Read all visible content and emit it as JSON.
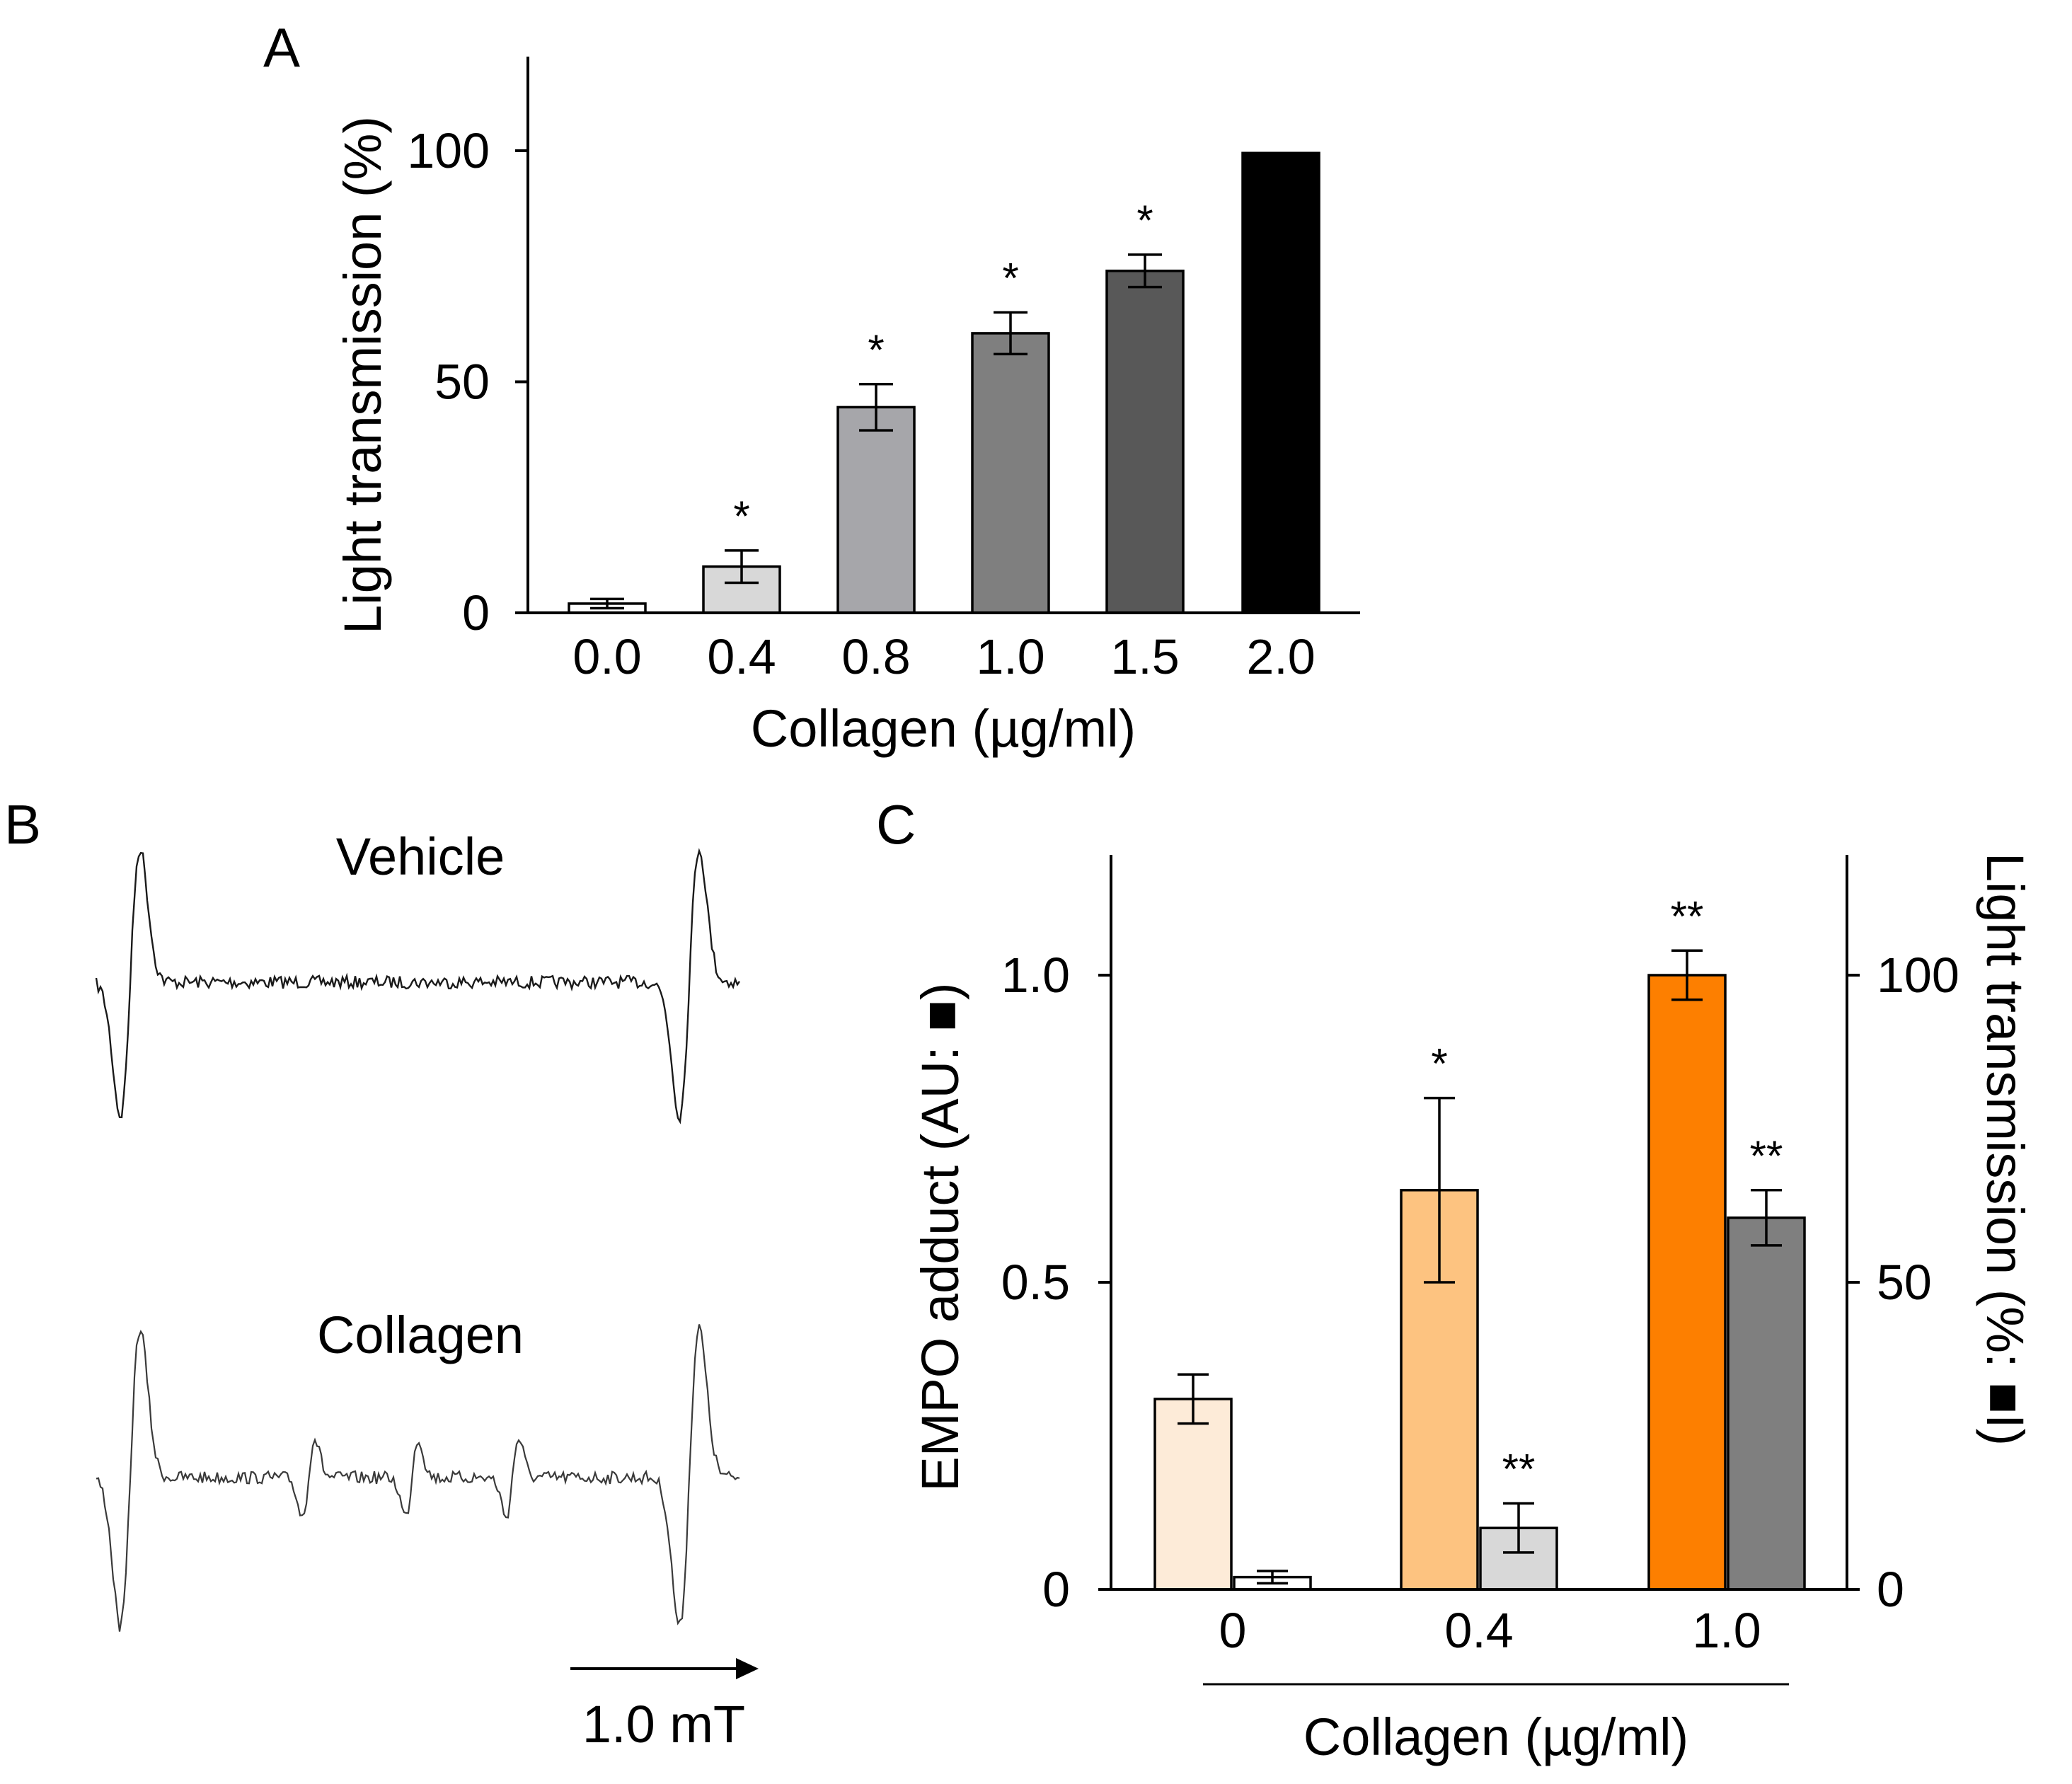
{
  "chart_data": [
    {
      "panel": "A",
      "type": "bar",
      "panel_label": "A",
      "xlabel": "Collagen (µg/ml)",
      "ylabel": "Light transmission (%)",
      "ylim": [
        0,
        120
      ],
      "yticks": [
        "0",
        "50",
        "100"
      ],
      "ytick_values": [
        0,
        50,
        100
      ],
      "categories": [
        "0.0",
        "0.4",
        "0.8",
        "1.0",
        "1.5",
        "2.0"
      ],
      "values": [
        2,
        10,
        44.5,
        60.5,
        74,
        99.5
      ],
      "errors": [
        1,
        3.5,
        5,
        4.5,
        3.5,
        0
      ],
      "colors": [
        "#ffffff",
        "#d8d8d8",
        "#a6a6aa",
        "#7f7f7f",
        "#585858",
        "#000000"
      ],
      "significance": [
        "",
        "*",
        "*",
        "*",
        "*",
        ""
      ]
    },
    {
      "panel": "B",
      "type": "spectrum",
      "panel_label": "B",
      "traces": [
        {
          "name": "Vehicle",
          "label": "Vehicle",
          "extra_peaks": 0
        },
        {
          "name": "Collagen",
          "label": "Collagen",
          "extra_peaks": 3
        }
      ],
      "scale_label": "1.0 mT"
    },
    {
      "panel": "C",
      "type": "bar",
      "panel_label": "C",
      "xlabel": "Collagen (µg/ml)",
      "ylabel_left": "EMPO adduct (AU: ■)",
      "ylabel_right": "Light transmission (%: ■I)",
      "ylim_left": [
        0,
        1.2
      ],
      "ylim_right": [
        0,
        120
      ],
      "yticks_left": [
        "0",
        "0.5",
        "1.0"
      ],
      "ytick_values_left": [
        0,
        0.5,
        1.0
      ],
      "yticks_right": [
        "0",
        "50",
        "100"
      ],
      "ytick_values_right": [
        0,
        50,
        100
      ],
      "categories": [
        "0",
        "0.4",
        "1.0"
      ],
      "series": [
        {
          "name": "EMPO adduct (AU)",
          "axis": "left",
          "values": [
            0.31,
            0.65,
            1.0
          ],
          "errors": [
            0.04,
            0.15,
            0.04
          ],
          "colors": [
            "#fdebd8",
            "#fdc380",
            "#fd7f00"
          ],
          "significance": [
            "",
            "*",
            "**"
          ]
        },
        {
          "name": "Light transmission (%)",
          "axis": "right",
          "values": [
            2,
            10,
            60.5
          ],
          "errors": [
            1,
            4,
            4.5
          ],
          "colors": [
            "#ffffff",
            "#d8d8d8",
            "#7f7f7f"
          ],
          "significance": [
            "",
            "**",
            "**"
          ]
        }
      ]
    }
  ]
}
